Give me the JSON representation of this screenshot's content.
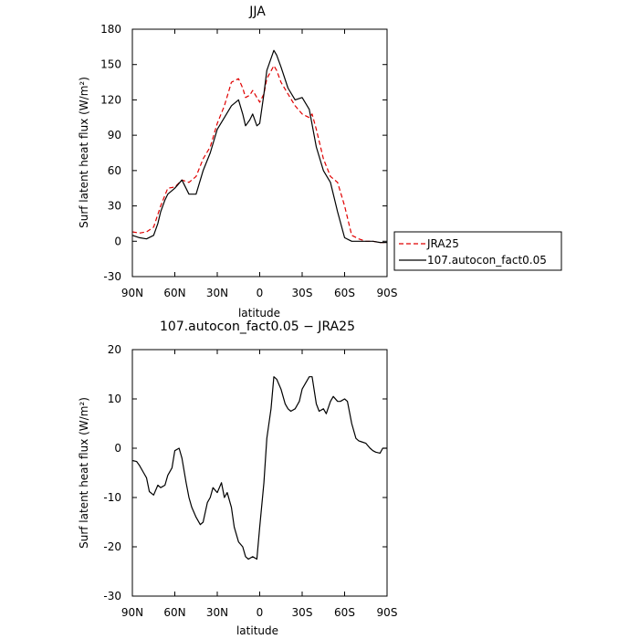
{
  "chart_data": [
    {
      "type": "line",
      "title": "JJA",
      "xlabel": "latitude",
      "ylabel": "Surf latent heat flux (W/m²)",
      "xlim": [
        90,
        -90
      ],
      "ylim": [
        -30,
        180
      ],
      "x_ticks": [
        90,
        60,
        30,
        0,
        -30,
        -60,
        -90
      ],
      "x_tick_labels": [
        "90N",
        "60N",
        "30N",
        "0",
        "30S",
        "60S",
        "90S"
      ],
      "y_ticks": [
        -30,
        0,
        30,
        60,
        90,
        120,
        150,
        180
      ],
      "y_tick_labels": [
        "-30",
        "0",
        "30",
        "60",
        "90",
        "120",
        "150",
        "180"
      ],
      "legend": {
        "position": "right",
        "entries": [
          "JRA25",
          "107.autocon_fact0.05"
        ]
      },
      "series": [
        {
          "name": "JRA25",
          "color": "#e00000",
          "dash": true,
          "x": [
            90,
            85,
            80,
            75,
            70,
            65,
            60,
            55,
            50,
            45,
            40,
            35,
            30,
            25,
            20,
            15,
            12,
            10,
            7,
            5,
            2,
            0,
            -3,
            -5,
            -10,
            -12,
            -15,
            -20,
            -25,
            -30,
            -35,
            -37,
            -40,
            -45,
            -50,
            -55,
            -60,
            -65,
            -70,
            -75,
            -80,
            -85,
            -90
          ],
          "y": [
            8,
            7,
            8,
            12,
            30,
            45,
            46,
            52,
            50,
            55,
            70,
            80,
            100,
            115,
            135,
            138,
            130,
            122,
            124,
            128,
            122,
            118,
            125,
            138,
            149,
            145,
            135,
            125,
            115,
            108,
            105,
            108,
            95,
            70,
            55,
            50,
            30,
            5,
            2,
            0,
            0,
            -1,
            -1
          ]
        },
        {
          "name": "107.autocon_fact0.05",
          "color": "#000000",
          "dash": false,
          "x": [
            90,
            85,
            80,
            75,
            72,
            70,
            67,
            65,
            60,
            55,
            50,
            45,
            40,
            35,
            30,
            25,
            20,
            15,
            12,
            10,
            7,
            5,
            2,
            0,
            -3,
            -5,
            -10,
            -12,
            -15,
            -20,
            -25,
            -30,
            -35,
            -40,
            -45,
            -50,
            -55,
            -60,
            -65,
            -70,
            -75,
            -80,
            -85,
            -90
          ],
          "y": [
            5,
            3,
            2,
            5,
            15,
            25,
            35,
            40,
            45,
            52,
            40,
            40,
            60,
            75,
            95,
            105,
            115,
            120,
            108,
            98,
            103,
            108,
            98,
            100,
            125,
            145,
            162,
            158,
            148,
            130,
            120,
            122,
            112,
            80,
            60,
            50,
            25,
            3,
            0,
            0,
            0,
            0,
            -1,
            -1
          ]
        }
      ]
    },
    {
      "type": "line",
      "title": "107.autocon_fact0.05 − JRA25",
      "xlabel": "latitude",
      "ylabel": "Surf latent heat flux (W/m²)",
      "xlim": [
        90,
        -90
      ],
      "ylim": [
        -30,
        20
      ],
      "x_ticks": [
        90,
        60,
        30,
        0,
        -30,
        -60,
        -90
      ],
      "x_tick_labels": [
        "90N",
        "60N",
        "30N",
        "0",
        "30S",
        "60S",
        "90S"
      ],
      "y_ticks": [
        -30,
        -20,
        -10,
        0,
        10,
        20
      ],
      "y_tick_labels": [
        "-30",
        "-20",
        "-10",
        "0",
        "10",
        "20"
      ],
      "series": [
        {
          "name": "107.autocon_fact0.05 − JRA25",
          "color": "#000000",
          "dash": false,
          "x": [
            90,
            87,
            85,
            82,
            80,
            78,
            75,
            72,
            70,
            67,
            65,
            62,
            60,
            57,
            55,
            52,
            50,
            48,
            45,
            42,
            40,
            37,
            35,
            33,
            30,
            27,
            25,
            23,
            20,
            18,
            15,
            12,
            10,
            8,
            5,
            2,
            0,
            -3,
            -5,
            -8,
            -10,
            -12,
            -15,
            -18,
            -20,
            -22,
            -25,
            -28,
            -30,
            -32,
            -35,
            -37,
            -40,
            -42,
            -45,
            -47,
            -50,
            -52,
            -55,
            -57,
            -60,
            -62,
            -65,
            -68,
            -70,
            -72,
            -75,
            -78,
            -80,
            -82,
            -85,
            -87,
            -90
          ],
          "y": [
            -2.5,
            -2.7,
            -3.5,
            -5,
            -6,
            -8.8,
            -9.5,
            -7.5,
            -8,
            -7.5,
            -5.5,
            -4,
            -0.5,
            0,
            -2,
            -7,
            -10,
            -12,
            -14,
            -15.5,
            -15,
            -11,
            -10,
            -8,
            -9,
            -7,
            -10,
            -9,
            -12,
            -16,
            -19,
            -20,
            -22,
            -22.5,
            -22,
            -22.5,
            -16,
            -7,
            2,
            8,
            14.5,
            14,
            12,
            9,
            8,
            7.5,
            8,
            9.5,
            12,
            13,
            14.5,
            14.5,
            9,
            7.5,
            8,
            7,
            9.5,
            10.5,
            9.5,
            9.5,
            10,
            9.5,
            5,
            2,
            1.5,
            1.3,
            1,
            0,
            -0.5,
            -0.8,
            -1,
            0,
            0
          ]
        }
      ]
    }
  ]
}
